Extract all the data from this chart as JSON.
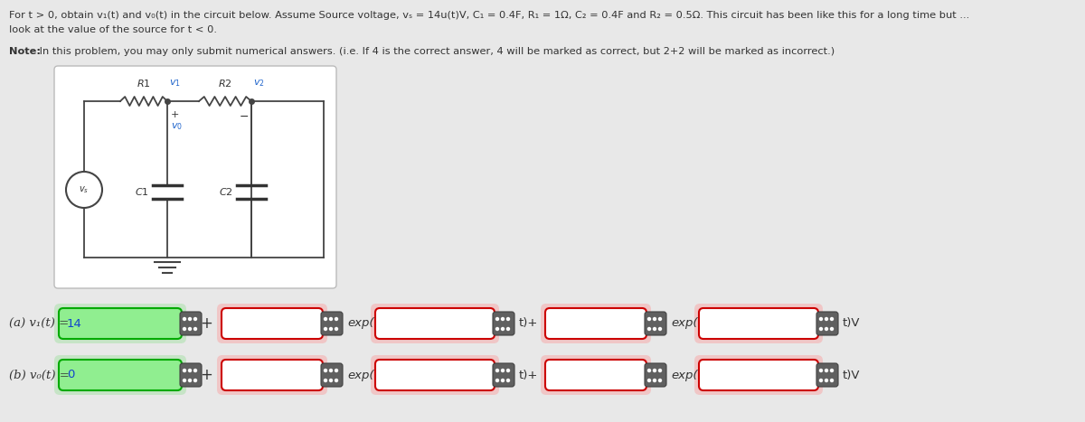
{
  "bg_color": "#e8e8e8",
  "white": "#ffffff",
  "title_text1": "For t > 0, obtain v₁(t) and v₀(t) in the circuit below. Assume Source voltage, vₛ = 14u(t)V, C₁ = 0.4F, R₁ = 1Ω, C₂ = 0.4F and R₂ = 0.5Ω. This circuit has been like this for a long time but ...",
  "title_text2": "look at the value of the source for t < 0.",
  "note_bold": "Note:",
  "note_text": " In this problem, you may only submit numerical answers. (i.e. If 4 is the correct answer, 4 will be marked as correct, but 2+2 will be marked as incorrect.)",
  "row_a_label": "(a) v₁(t) = ",
  "row_b_label": "(b) v₀(t) = ",
  "row_a_green_val": "14",
  "row_b_green_val": "0",
  "green_box_color": "#90EE90",
  "box_border_green": "#00aa00",
  "box_border_red": "#cc0000",
  "icon_color": "#606060",
  "circuit_box_color": "#ffffff",
  "circuit_box_border": "#bbbbbb",
  "text_color": "#333333",
  "blue_val_color": "#1144cc"
}
